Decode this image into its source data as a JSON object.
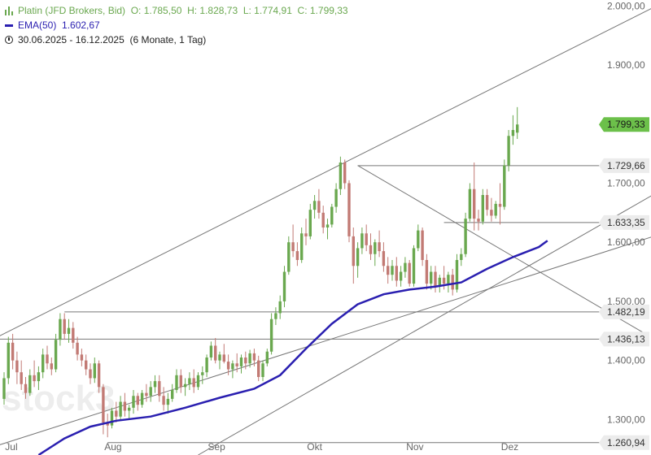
{
  "legend": {
    "instrument": "Platin (JFD Brokers, Bid)",
    "open": "O: 1.785,50",
    "high": "H: 1.828,73",
    "low": "L: 1.774,91",
    "close": "C: 1.799,33",
    "ema_label": "EMA(50)",
    "ema_value": "1.602,67",
    "range": "30.06.2025 - 16.12.2025",
    "period": "(6 Monate, 1 Tag)"
  },
  "watermark": "stock3",
  "colors": {
    "up": "#6aa84f",
    "down": "#c27a74",
    "ema": "#2a1fb0",
    "line": "#777777",
    "price_tag": "#6cc04a"
  },
  "chart_data": {
    "type": "candlestick",
    "ylim": [
      1240,
      2010
    ],
    "y_ticks": [
      {
        "value": 1300,
        "label": "1.300,00"
      },
      {
        "value": 1400,
        "label": "1.400,00"
      },
      {
        "value": 1500,
        "label": "1.500,00"
      },
      {
        "value": 1600,
        "label": "1.600,00"
      },
      {
        "value": 1700,
        "label": "1.700,00"
      },
      {
        "value": 1900,
        "label": "1.900,00"
      },
      {
        "value": 2000,
        "label": "2.000,00"
      }
    ],
    "x_ticks": [
      {
        "index": 1,
        "label": "Jul"
      },
      {
        "index": 24,
        "label": "Aug"
      },
      {
        "index": 48,
        "label": "Sep"
      },
      {
        "index": 71,
        "label": "Okt"
      },
      {
        "index": 94,
        "label": "Nov"
      },
      {
        "index": 116,
        "label": "Dez"
      }
    ],
    "candles": [
      [
        1335,
        1380,
        1325,
        1370
      ],
      [
        1370,
        1440,
        1360,
        1430
      ],
      [
        1430,
        1445,
        1385,
        1400
      ],
      [
        1400,
        1415,
        1360,
        1380
      ],
      [
        1380,
        1400,
        1350,
        1360
      ],
      [
        1360,
        1372,
        1335,
        1345
      ],
      [
        1345,
        1385,
        1340,
        1375
      ],
      [
        1375,
        1400,
        1355,
        1365
      ],
      [
        1365,
        1390,
        1350,
        1380
      ],
      [
        1380,
        1420,
        1370,
        1410
      ],
      [
        1410,
        1425,
        1385,
        1395
      ],
      [
        1395,
        1405,
        1375,
        1385
      ],
      [
        1385,
        1445,
        1380,
        1435
      ],
      [
        1435,
        1480,
        1425,
        1470
      ],
      [
        1470,
        1480,
        1435,
        1445
      ],
      [
        1445,
        1470,
        1430,
        1455
      ],
      [
        1455,
        1465,
        1420,
        1430
      ],
      [
        1430,
        1440,
        1400,
        1410
      ],
      [
        1410,
        1420,
        1390,
        1400
      ],
      [
        1400,
        1410,
        1375,
        1385
      ],
      [
        1385,
        1395,
        1360,
        1370
      ],
      [
        1370,
        1405,
        1362,
        1395
      ],
      [
        1395,
        1400,
        1345,
        1355
      ],
      [
        1355,
        1360,
        1275,
        1295
      ],
      [
        1295,
        1310,
        1270,
        1290
      ],
      [
        1290,
        1320,
        1285,
        1315
      ],
      [
        1315,
        1330,
        1295,
        1305
      ],
      [
        1305,
        1340,
        1300,
        1330
      ],
      [
        1330,
        1345,
        1305,
        1315
      ],
      [
        1315,
        1325,
        1300,
        1320
      ],
      [
        1320,
        1350,
        1310,
        1340
      ],
      [
        1340,
        1345,
        1315,
        1325
      ],
      [
        1325,
        1350,
        1320,
        1345
      ],
      [
        1345,
        1360,
        1330,
        1340
      ],
      [
        1340,
        1365,
        1330,
        1355
      ],
      [
        1355,
        1375,
        1345,
        1365
      ],
      [
        1365,
        1375,
        1330,
        1340
      ],
      [
        1340,
        1355,
        1315,
        1325
      ],
      [
        1325,
        1345,
        1310,
        1335
      ],
      [
        1335,
        1360,
        1330,
        1350
      ],
      [
        1350,
        1385,
        1345,
        1375
      ],
      [
        1375,
        1385,
        1345,
        1355
      ],
      [
        1355,
        1370,
        1340,
        1360
      ],
      [
        1360,
        1380,
        1350,
        1370
      ],
      [
        1370,
        1385,
        1345,
        1355
      ],
      [
        1355,
        1380,
        1350,
        1375
      ],
      [
        1375,
        1390,
        1360,
        1380
      ],
      [
        1380,
        1410,
        1372,
        1405
      ],
      [
        1405,
        1432,
        1400,
        1425
      ],
      [
        1425,
        1438,
        1395,
        1400
      ],
      [
        1400,
        1415,
        1385,
        1410
      ],
      [
        1410,
        1428,
        1395,
        1398
      ],
      [
        1398,
        1410,
        1375,
        1385
      ],
      [
        1385,
        1400,
        1370,
        1395
      ],
      [
        1395,
        1412,
        1380,
        1390
      ],
      [
        1390,
        1410,
        1378,
        1405
      ],
      [
        1405,
        1415,
        1385,
        1395
      ],
      [
        1395,
        1418,
        1388,
        1412
      ],
      [
        1412,
        1420,
        1390,
        1400
      ],
      [
        1400,
        1408,
        1365,
        1372
      ],
      [
        1372,
        1400,
        1365,
        1395
      ],
      [
        1395,
        1420,
        1390,
        1415
      ],
      [
        1415,
        1480,
        1410,
        1470
      ],
      [
        1470,
        1490,
        1460,
        1480
      ],
      [
        1480,
        1510,
        1470,
        1500
      ],
      [
        1500,
        1560,
        1490,
        1550
      ],
      [
        1550,
        1610,
        1545,
        1600
      ],
      [
        1600,
        1630,
        1575,
        1585
      ],
      [
        1585,
        1600,
        1560,
        1570
      ],
      [
        1570,
        1625,
        1565,
        1615
      ],
      [
        1615,
        1640,
        1595,
        1610
      ],
      [
        1610,
        1665,
        1605,
        1655
      ],
      [
        1655,
        1680,
        1640,
        1670
      ],
      [
        1670,
        1690,
        1640,
        1650
      ],
      [
        1650,
        1662,
        1615,
        1625
      ],
      [
        1625,
        1640,
        1605,
        1630
      ],
      [
        1630,
        1665,
        1625,
        1660
      ],
      [
        1660,
        1700,
        1650,
        1690
      ],
      [
        1690,
        1745,
        1680,
        1735
      ],
      [
        1735,
        1740,
        1690,
        1700
      ],
      [
        1700,
        1705,
        1600,
        1610
      ],
      [
        1610,
        1625,
        1530,
        1560
      ],
      [
        1560,
        1600,
        1540,
        1590
      ],
      [
        1590,
        1625,
        1580,
        1615
      ],
      [
        1615,
        1630,
        1585,
        1595
      ],
      [
        1595,
        1615,
        1570,
        1580
      ],
      [
        1580,
        1605,
        1560,
        1600
      ],
      [
        1600,
        1620,
        1575,
        1585
      ],
      [
        1585,
        1600,
        1550,
        1560
      ],
      [
        1560,
        1575,
        1530,
        1545
      ],
      [
        1545,
        1570,
        1535,
        1560
      ],
      [
        1560,
        1575,
        1525,
        1535
      ],
      [
        1535,
        1560,
        1525,
        1550
      ],
      [
        1550,
        1575,
        1540,
        1565
      ],
      [
        1565,
        1570,
        1525,
        1530
      ],
      [
        1530,
        1595,
        1525,
        1590
      ],
      [
        1590,
        1630,
        1585,
        1620
      ],
      [
        1620,
        1625,
        1560,
        1570
      ],
      [
        1570,
        1580,
        1520,
        1530
      ],
      [
        1530,
        1560,
        1520,
        1550
      ],
      [
        1550,
        1560,
        1515,
        1525
      ],
      [
        1525,
        1545,
        1515,
        1540
      ],
      [
        1540,
        1560,
        1520,
        1530
      ],
      [
        1530,
        1550,
        1515,
        1545
      ],
      [
        1545,
        1555,
        1510,
        1520
      ],
      [
        1520,
        1580,
        1515,
        1570
      ],
      [
        1570,
        1590,
        1560,
        1580
      ],
      [
        1580,
        1650,
        1575,
        1640
      ],
      [
        1640,
        1700,
        1635,
        1690
      ],
      [
        1690,
        1735,
        1620,
        1640
      ],
      [
        1640,
        1655,
        1620,
        1635
      ],
      [
        1635,
        1690,
        1630,
        1680
      ],
      [
        1680,
        1690,
        1645,
        1655
      ],
      [
        1655,
        1675,
        1635,
        1645
      ],
      [
        1645,
        1670,
        1640,
        1665
      ],
      [
        1665,
        1700,
        1630,
        1660
      ],
      [
        1660,
        1740,
        1655,
        1730
      ],
      [
        1730,
        1790,
        1720,
        1780
      ],
      [
        1780,
        1815,
        1765,
        1790
      ],
      [
        1785.5,
        1828.73,
        1774.91,
        1799.33
      ]
    ],
    "ema50": [
      {
        "index": 8,
        "value": 1240
      },
      {
        "index": 14,
        "value": 1268
      },
      {
        "index": 20,
        "value": 1288
      },
      {
        "index": 26,
        "value": 1298
      },
      {
        "index": 34,
        "value": 1305
      },
      {
        "index": 42,
        "value": 1320
      },
      {
        "index": 50,
        "value": 1337
      },
      {
        "index": 58,
        "value": 1352
      },
      {
        "index": 64,
        "value": 1375
      },
      {
        "index": 70,
        "value": 1420
      },
      {
        "index": 76,
        "value": 1462
      },
      {
        "index": 82,
        "value": 1495
      },
      {
        "index": 88,
        "value": 1512
      },
      {
        "index": 94,
        "value": 1520
      },
      {
        "index": 100,
        "value": 1525
      },
      {
        "index": 106,
        "value": 1532
      },
      {
        "index": 112,
        "value": 1555
      },
      {
        "index": 118,
        "value": 1575
      },
      {
        "index": 124,
        "value": 1592
      },
      {
        "index": 126,
        "value": 1602.67
      }
    ],
    "levels": [
      {
        "value": 1799.33,
        "label": "1.799,33",
        "tag": "current",
        "line": false
      },
      {
        "value": 1729.66,
        "label": "1.729,66",
        "tag": "level",
        "line": true,
        "from_index": 82
      },
      {
        "value": 1633.35,
        "label": "1.633,35",
        "tag": "level",
        "line": true,
        "from_index": 102
      },
      {
        "value": 1482.19,
        "label": "1.482,19",
        "tag": "level",
        "line": true,
        "from_index": 14
      },
      {
        "value": 1436.13,
        "label": "1.436,13",
        "tag": "level",
        "line": true,
        "from_index": -1
      },
      {
        "value": 1260.94,
        "label": "1.260,94",
        "tag": "level",
        "line": true,
        "from_index": 24
      }
    ],
    "trendlines": [
      {
        "from": {
          "index": -2,
          "value": 1438
        },
        "to": {
          "index": 154,
          "value": 2010
        }
      },
      {
        "from": {
          "index": 82,
          "value": 1730
        },
        "to": {
          "index": 148,
          "value": 1448
        }
      },
      {
        "from": {
          "index": -2,
          "value": 1255
        },
        "to": {
          "index": 154,
          "value": 1618
        }
      },
      {
        "from": {
          "index": 45,
          "value": 1240
        },
        "to": {
          "index": 154,
          "value": 1695
        }
      }
    ]
  }
}
